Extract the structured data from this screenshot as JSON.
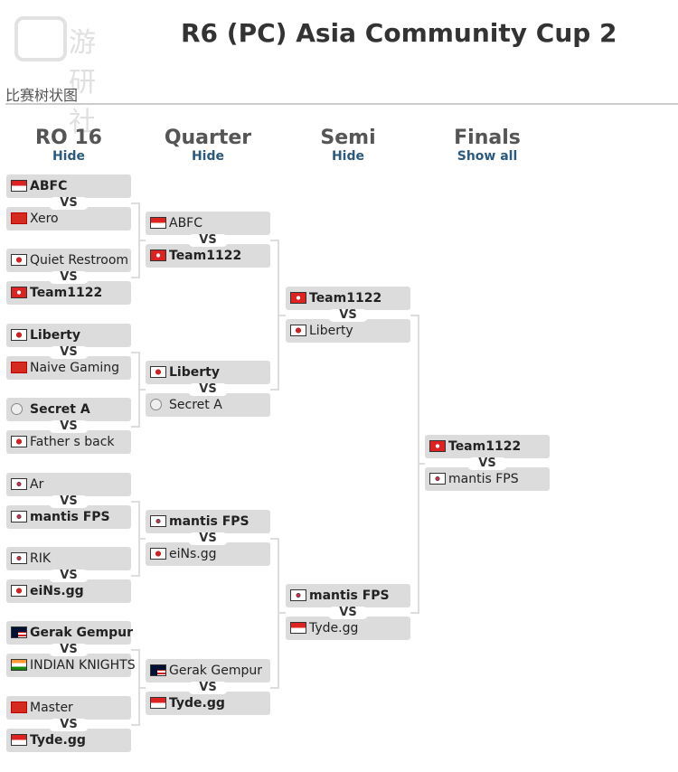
{
  "logo_text": "游研社",
  "title": "R6 (PC) Asia Community Cup 2",
  "subtitle": "比赛树状图",
  "vs_label": "VS",
  "rounds": [
    {
      "name": "RO 16",
      "toggle": "Hide",
      "matches": [
        [
          {
            "team": "ABFC",
            "flag": "sg",
            "winner": true
          },
          {
            "team": "Xero",
            "flag": "cn",
            "winner": false
          }
        ],
        [
          {
            "team": "Quiet Restroom",
            "flag": "jp",
            "winner": false
          },
          {
            "team": "Team1122",
            "flag": "hk",
            "winner": true
          }
        ],
        [
          {
            "team": "Liberty",
            "flag": "jp",
            "winner": true
          },
          {
            "team": "Naive Gaming",
            "flag": "cn",
            "winner": false
          }
        ],
        [
          {
            "team": "Secret A",
            "flag": "none",
            "winner": true
          },
          {
            "team": "Father s back",
            "flag": "jp",
            "winner": false
          }
        ],
        [
          {
            "team": "Ar",
            "flag": "kr",
            "winner": false
          },
          {
            "team": "mantis FPS",
            "flag": "kr",
            "winner": true
          }
        ],
        [
          {
            "team": "RIK",
            "flag": "kr",
            "winner": false
          },
          {
            "team": "eiNs.gg",
            "flag": "jp",
            "winner": true
          }
        ],
        [
          {
            "team": "Gerak Gempur",
            "flag": "my",
            "winner": true
          },
          {
            "team": "INDIAN KNIGHTS",
            "flag": "in",
            "winner": false
          }
        ],
        [
          {
            "team": "Master",
            "flag": "cn",
            "winner": false
          },
          {
            "team": "Tyde.gg",
            "flag": "sg",
            "winner": true
          }
        ]
      ]
    },
    {
      "name": "Quarter",
      "toggle": "Hide",
      "matches": [
        [
          {
            "team": "ABFC",
            "flag": "sg",
            "winner": false
          },
          {
            "team": "Team1122",
            "flag": "hk",
            "winner": true
          }
        ],
        [
          {
            "team": "Liberty",
            "flag": "jp",
            "winner": true
          },
          {
            "team": "Secret A",
            "flag": "none",
            "winner": false
          }
        ],
        [
          {
            "team": "mantis FPS",
            "flag": "kr",
            "winner": true
          },
          {
            "team": "eiNs.gg",
            "flag": "jp",
            "winner": false
          }
        ],
        [
          {
            "team": "Gerak Gempur",
            "flag": "my",
            "winner": false
          },
          {
            "team": "Tyde.gg",
            "flag": "sg",
            "winner": true
          }
        ]
      ]
    },
    {
      "name": "Semi",
      "toggle": "Hide",
      "matches": [
        [
          {
            "team": "Team1122",
            "flag": "hk",
            "winner": true
          },
          {
            "team": "Liberty",
            "flag": "jp",
            "winner": false
          }
        ],
        [
          {
            "team": "mantis FPS",
            "flag": "kr",
            "winner": true
          },
          {
            "team": "Tyde.gg",
            "flag": "sg",
            "winner": false
          }
        ]
      ]
    },
    {
      "name": "Finals",
      "toggle": "Show all",
      "matches": [
        [
          {
            "team": "Team1122",
            "flag": "hk",
            "winner": true
          },
          {
            "team": "mantis FPS",
            "flag": "kr",
            "winner": false
          }
        ]
      ]
    }
  ]
}
